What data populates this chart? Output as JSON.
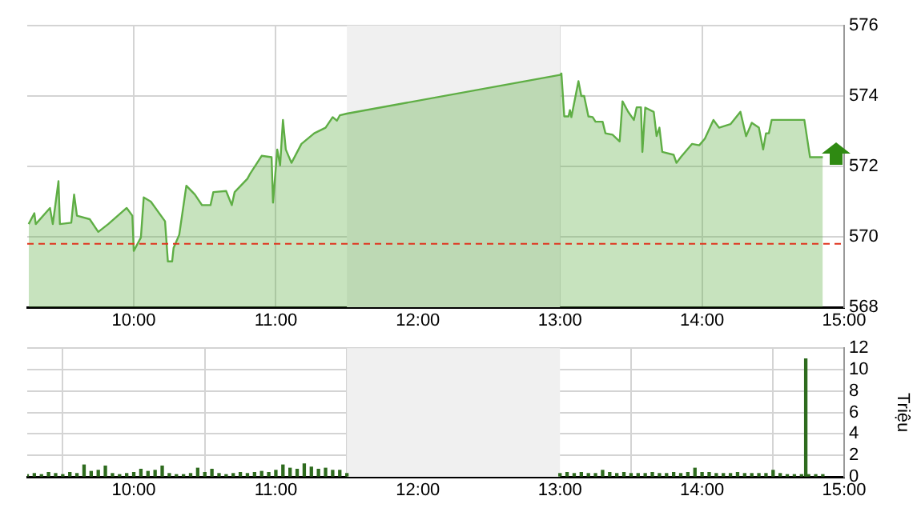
{
  "chart_data": [
    {
      "type": "area",
      "xlim": [
        9.25,
        15
      ],
      "xticks": [
        {
          "value": 10,
          "label": "10:00"
        },
        {
          "value": 11,
          "label": "11:00"
        },
        {
          "value": 12,
          "label": "12:00"
        },
        {
          "value": 13,
          "label": "13:00"
        },
        {
          "value": 14,
          "label": "14:00"
        },
        {
          "value": 15,
          "label": "15:00"
        }
      ],
      "ylim": [
        568,
        576
      ],
      "yticks": [
        568,
        570,
        572,
        574,
        576
      ],
      "grid": true,
      "legend": false,
      "ref_lines": [
        {
          "axis": "y",
          "value": 569.8,
          "color": "#e0341e",
          "line_style": "dashed"
        }
      ],
      "bands": [
        {
          "axis": "x",
          "from": 11.5,
          "to": 13,
          "color": "#f0f0f0"
        }
      ],
      "series": [
        {
          "color": "#5fae45",
          "x": [
            9.26,
            9.3,
            9.31,
            9.41,
            9.43,
            9.47,
            9.48,
            9.56,
            9.58,
            9.6,
            9.69,
            9.75,
            9.82,
            9.95,
            9.99,
            10.0,
            10.05,
            10.07,
            10.12,
            10.22,
            10.24,
            10.27,
            10.28,
            10.32,
            10.37,
            10.43,
            10.48,
            10.54,
            10.56,
            10.65,
            10.69,
            10.71,
            10.8,
            10.82,
            10.9,
            10.97,
            10.98,
            11.01,
            11.03,
            11.05,
            11.07,
            11.11,
            11.18,
            11.27,
            11.35,
            11.4,
            11.43,
            11.45,
            11.5,
            13.0,
            13.01,
            13.03,
            13.06,
            13.07,
            13.08,
            13.13,
            13.15,
            13.17,
            13.2,
            13.23,
            13.25,
            13.3,
            13.32,
            13.37,
            13.42,
            13.44,
            13.48,
            13.52,
            13.54,
            13.57,
            13.58,
            13.6,
            13.66,
            13.68,
            13.7,
            13.72,
            13.8,
            13.82,
            13.85,
            13.93,
            13.98,
            14.02,
            14.08,
            14.12,
            14.2,
            14.27,
            14.31,
            14.35,
            14.4,
            14.43,
            14.45,
            14.47,
            14.49,
            14.72,
            14.76,
            14.85
          ],
          "values": [
            570.36,
            570.67,
            570.36,
            570.82,
            570.36,
            571.58,
            570.36,
            570.4,
            571.2,
            570.6,
            570.5,
            570.14,
            570.36,
            570.82,
            570.6,
            569.6,
            569.98,
            571.12,
            571.0,
            570.44,
            569.3,
            569.3,
            569.68,
            570.06,
            571.45,
            571.2,
            570.9,
            570.9,
            571.27,
            571.3,
            570.9,
            571.27,
            571.65,
            571.8,
            572.3,
            572.26,
            570.97,
            572.48,
            572.03,
            573.32,
            572.48,
            572.1,
            572.64,
            572.94,
            573.1,
            573.4,
            573.3,
            573.45,
            573.5,
            574.6,
            574.64,
            573.42,
            573.42,
            573.6,
            573.4,
            574.42,
            574.0,
            574.0,
            573.42,
            573.4,
            573.27,
            573.27,
            572.94,
            572.9,
            572.71,
            573.85,
            573.55,
            573.32,
            573.68,
            573.68,
            572.41,
            573.67,
            573.55,
            572.86,
            573.1,
            572.41,
            572.33,
            572.1,
            572.26,
            572.64,
            572.6,
            572.79,
            573.32,
            573.1,
            573.2,
            573.55,
            572.86,
            573.24,
            573.1,
            572.48,
            572.94,
            572.94,
            573.32,
            573.32,
            572.26,
            572.26
          ]
        }
      ]
    },
    {
      "type": "bar",
      "xlim": [
        9.25,
        15
      ],
      "xticks": [
        {
          "value": 10,
          "label": "10:00"
        },
        {
          "value": 11,
          "label": "11:00"
        },
        {
          "value": 12,
          "label": "12:00"
        },
        {
          "value": 13,
          "label": "13:00"
        },
        {
          "value": 14,
          "label": "14:00"
        },
        {
          "value": 15,
          "label": "15:00"
        }
      ],
      "ylim": [
        0,
        12
      ],
      "yticks": [
        0,
        2,
        4,
        6,
        8,
        10,
        12
      ],
      "ylabel": "Triệu",
      "grid": true,
      "legend": false,
      "bands": [
        {
          "axis": "x",
          "from": 11.5,
          "to": 13,
          "color": "#f0f0f0"
        }
      ],
      "series": [
        {
          "color": "#2e6b1e",
          "x": [
            9.25,
            9.3,
            9.35,
            9.4,
            9.45,
            9.5,
            9.55,
            9.6,
            9.65,
            9.7,
            9.75,
            9.8,
            9.85,
            9.9,
            9.95,
            10.0,
            10.05,
            10.1,
            10.15,
            10.2,
            10.25,
            10.3,
            10.35,
            10.4,
            10.45,
            10.5,
            10.55,
            10.6,
            10.65,
            10.7,
            10.75,
            10.8,
            10.85,
            10.9,
            10.95,
            11.0,
            11.05,
            11.1,
            11.15,
            11.2,
            11.25,
            11.3,
            11.35,
            11.4,
            11.45,
            11.5,
            13.0,
            13.05,
            13.1,
            13.15,
            13.2,
            13.25,
            13.3,
            13.35,
            13.4,
            13.45,
            13.5,
            13.55,
            13.6,
            13.65,
            13.7,
            13.75,
            13.8,
            13.85,
            13.9,
            13.95,
            14.0,
            14.05,
            14.1,
            14.15,
            14.2,
            14.25,
            14.3,
            14.35,
            14.4,
            14.45,
            14.5,
            14.55,
            14.6,
            14.65,
            14.7,
            14.73,
            14.75,
            14.8,
            14.85
          ],
          "values": [
            0.2,
            0.3,
            0.2,
            0.4,
            0.3,
            0.2,
            0.4,
            0.3,
            1.1,
            0.5,
            0.6,
            1.0,
            0.3,
            0.2,
            0.3,
            0.4,
            0.7,
            0.5,
            0.6,
            1.0,
            0.3,
            0.2,
            0.2,
            0.3,
            0.8,
            0.4,
            0.7,
            0.3,
            0.2,
            0.3,
            0.4,
            0.3,
            0.4,
            0.5,
            0.4,
            0.6,
            1.1,
            0.8,
            0.7,
            1.2,
            0.9,
            0.7,
            0.8,
            0.6,
            0.6,
            0.3,
            0.3,
            0.4,
            0.3,
            0.4,
            0.3,
            0.3,
            0.6,
            0.4,
            0.3,
            0.4,
            0.3,
            0.3,
            0.3,
            0.4,
            0.3,
            0.3,
            0.4,
            0.3,
            0.4,
            0.8,
            0.4,
            0.4,
            0.3,
            0.3,
            0.3,
            0.4,
            0.3,
            0.3,
            0.3,
            0.3,
            0.6,
            0.3,
            0.2,
            0.2,
            0.2,
            11,
            0.2,
            0.2,
            0.2
          ]
        }
      ]
    }
  ]
}
